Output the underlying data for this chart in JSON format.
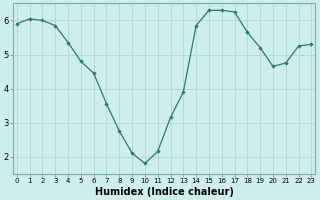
{
  "x": [
    0,
    1,
    2,
    3,
    4,
    5,
    6,
    7,
    8,
    9,
    10,
    11,
    12,
    13,
    14,
    15,
    16,
    17,
    18,
    19,
    20,
    21,
    22,
    23
  ],
  "y": [
    5.9,
    6.05,
    6.0,
    5.85,
    5.35,
    4.8,
    4.45,
    3.55,
    2.75,
    2.1,
    1.8,
    2.15,
    3.15,
    3.9,
    5.85,
    6.3,
    6.3,
    6.25,
    5.65,
    5.2,
    4.65,
    4.75,
    5.25,
    5.3
  ],
  "xlabel": "Humidex (Indice chaleur)",
  "line_color": "#2a7a6e",
  "marker": "D",
  "marker_size": 2.2,
  "bg_color": "#ceeeed",
  "grid_color": "#b5d9d7",
  "spine_color": "#7aacaa",
  "ylim": [
    1.5,
    6.5
  ],
  "xlim": [
    -0.3,
    23.3
  ],
  "yticks": [
    2,
    3,
    4,
    5,
    6
  ],
  "xticks": [
    0,
    1,
    2,
    3,
    4,
    5,
    6,
    7,
    8,
    9,
    10,
    11,
    12,
    13,
    14,
    15,
    16,
    17,
    18,
    19,
    20,
    21,
    22,
    23
  ],
  "xlabel_fontsize": 7.0,
  "xtick_fontsize": 5.0,
  "ytick_fontsize": 6.0,
  "linewidth": 0.9
}
